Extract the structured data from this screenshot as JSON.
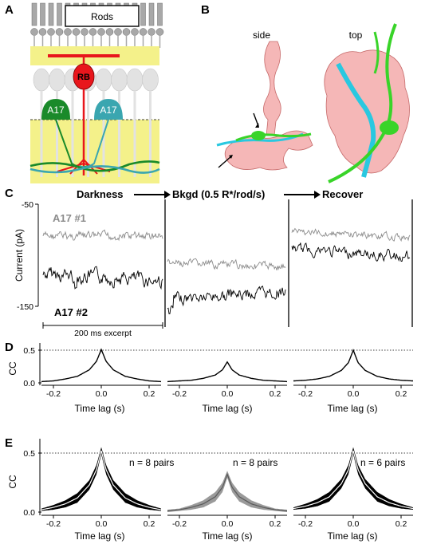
{
  "panels": {
    "A": {
      "letter": "A",
      "rods_label": "Rods",
      "rb_label": "RB",
      "a17_left_label": "A17",
      "a17_right_label": "A17",
      "colors": {
        "rb": "#e8161c",
        "a17_left": "#1a8a2a",
        "a17_right": "#3aa6b0",
        "layer": "#f4f18a",
        "cells": "#e2e2e2",
        "rods": "#a8a8a8"
      }
    },
    "B": {
      "letter": "B",
      "view_side": "side",
      "view_top": "top",
      "colors": {
        "rb": "#f0a0a0",
        "cyan": "#29c8e0",
        "green": "#39d429"
      }
    },
    "C": {
      "letter": "C",
      "condition_darkness": "Darkness",
      "condition_bkgd": "Bkgd (0.5 R*/rod/s)",
      "condition_recover": "Recover",
      "trace1_label": "A17 #1",
      "trace2_label": "A17 #2",
      "ylabel": "Current (pA)",
      "ytick_top": "-50",
      "ytick_bottom": "-150",
      "scalebar_label": "200 ms excerpt",
      "colors": {
        "trace1": "#8c8c8c",
        "trace2": "#000000"
      }
    },
    "D": {
      "letter": "D",
      "ylabel": "CC",
      "ytick_high": "0.5",
      "ytick_low": "0.0",
      "xlabel": "Time lag (s)",
      "xticks": [
        "-0.2",
        "0.0",
        "0.2"
      ]
    },
    "E": {
      "letter": "E",
      "ylabel": "CC",
      "ytick_high": "0.5",
      "ytick_low": "0.0",
      "xlabel": "Time lag (s)",
      "xticks": [
        "-0.2",
        "0.0",
        "0.2"
      ],
      "n_labels": [
        "n = 8 pairs",
        "n = 8 pairs",
        "n = 6 pairs"
      ],
      "colors": {
        "band_dark": "#000000",
        "band_grey": "#9a9a9a"
      }
    }
  },
  "chart_data": [
    {
      "type": "line",
      "panel": "D",
      "xlabel": "Time lag (s)",
      "ylabel": "CC",
      "xlim": [
        -0.25,
        0.25
      ],
      "ylim": [
        0,
        0.55
      ],
      "reference_line": 0.5,
      "series": [
        {
          "condition": "Darkness",
          "x": [
            -0.25,
            -0.2,
            -0.15,
            -0.1,
            -0.05,
            -0.02,
            0.0,
            0.02,
            0.05,
            0.1,
            0.15,
            0.2,
            0.25
          ],
          "y": [
            0.02,
            0.03,
            0.06,
            0.1,
            0.2,
            0.33,
            0.51,
            0.33,
            0.2,
            0.1,
            0.06,
            0.03,
            0.02
          ]
        },
        {
          "condition": "Bkgd (0.5 R*/rod/s)",
          "x": [
            -0.25,
            -0.2,
            -0.15,
            -0.1,
            -0.05,
            -0.02,
            0.0,
            0.02,
            0.05,
            0.1,
            0.15,
            0.2,
            0.25
          ],
          "y": [
            0.02,
            0.03,
            0.04,
            0.07,
            0.12,
            0.2,
            0.32,
            0.2,
            0.12,
            0.07,
            0.04,
            0.03,
            0.02
          ]
        },
        {
          "condition": "Recover",
          "x": [
            -0.25,
            -0.2,
            -0.15,
            -0.1,
            -0.05,
            -0.02,
            0.0,
            0.02,
            0.05,
            0.1,
            0.15,
            0.2,
            0.25
          ],
          "y": [
            0.03,
            0.04,
            0.06,
            0.1,
            0.19,
            0.31,
            0.5,
            0.31,
            0.19,
            0.1,
            0.06,
            0.04,
            0.03
          ]
        }
      ]
    },
    {
      "type": "area",
      "panel": "E",
      "xlabel": "Time lag (s)",
      "ylabel": "CC",
      "xlim": [
        -0.25,
        0.25
      ],
      "ylim": [
        0,
        0.6
      ],
      "reference_line": 0.5,
      "series": [
        {
          "condition": "Darkness",
          "n": "n = 8 pairs",
          "x": [
            -0.25,
            -0.2,
            -0.15,
            -0.1,
            -0.05,
            -0.02,
            0.0,
            0.02,
            0.05,
            0.1,
            0.15,
            0.2,
            0.25
          ],
          "mean": [
            0.02,
            0.04,
            0.07,
            0.12,
            0.23,
            0.36,
            0.52,
            0.36,
            0.23,
            0.12,
            0.07,
            0.04,
            0.02
          ],
          "sem": [
            0.01,
            0.02,
            0.03,
            0.04,
            0.04,
            0.04,
            0.03,
            0.04,
            0.04,
            0.04,
            0.03,
            0.02,
            0.01
          ]
        },
        {
          "condition": "Bkgd (0.5 R*/rod/s)",
          "n": "n = 8 pairs",
          "x": [
            -0.25,
            -0.2,
            -0.15,
            -0.1,
            -0.05,
            -0.02,
            0.0,
            0.02,
            0.05,
            0.1,
            0.15,
            0.2,
            0.25
          ],
          "mean": [
            0.01,
            0.02,
            0.04,
            0.07,
            0.13,
            0.21,
            0.32,
            0.21,
            0.13,
            0.07,
            0.04,
            0.02,
            0.01
          ],
          "sem": [
            0.01,
            0.01,
            0.02,
            0.03,
            0.04,
            0.04,
            0.03,
            0.04,
            0.04,
            0.03,
            0.02,
            0.01,
            0.01
          ]
        },
        {
          "condition": "Recover",
          "n": "n = 6 pairs",
          "x": [
            -0.25,
            -0.2,
            -0.15,
            -0.1,
            -0.05,
            -0.02,
            0.0,
            0.02,
            0.05,
            0.1,
            0.15,
            0.2,
            0.25
          ],
          "mean": [
            0.03,
            0.05,
            0.08,
            0.13,
            0.24,
            0.36,
            0.52,
            0.36,
            0.24,
            0.13,
            0.08,
            0.05,
            0.03
          ],
          "sem": [
            0.01,
            0.02,
            0.03,
            0.04,
            0.04,
            0.04,
            0.03,
            0.04,
            0.04,
            0.04,
            0.03,
            0.02,
            0.01
          ]
        }
      ]
    }
  ]
}
